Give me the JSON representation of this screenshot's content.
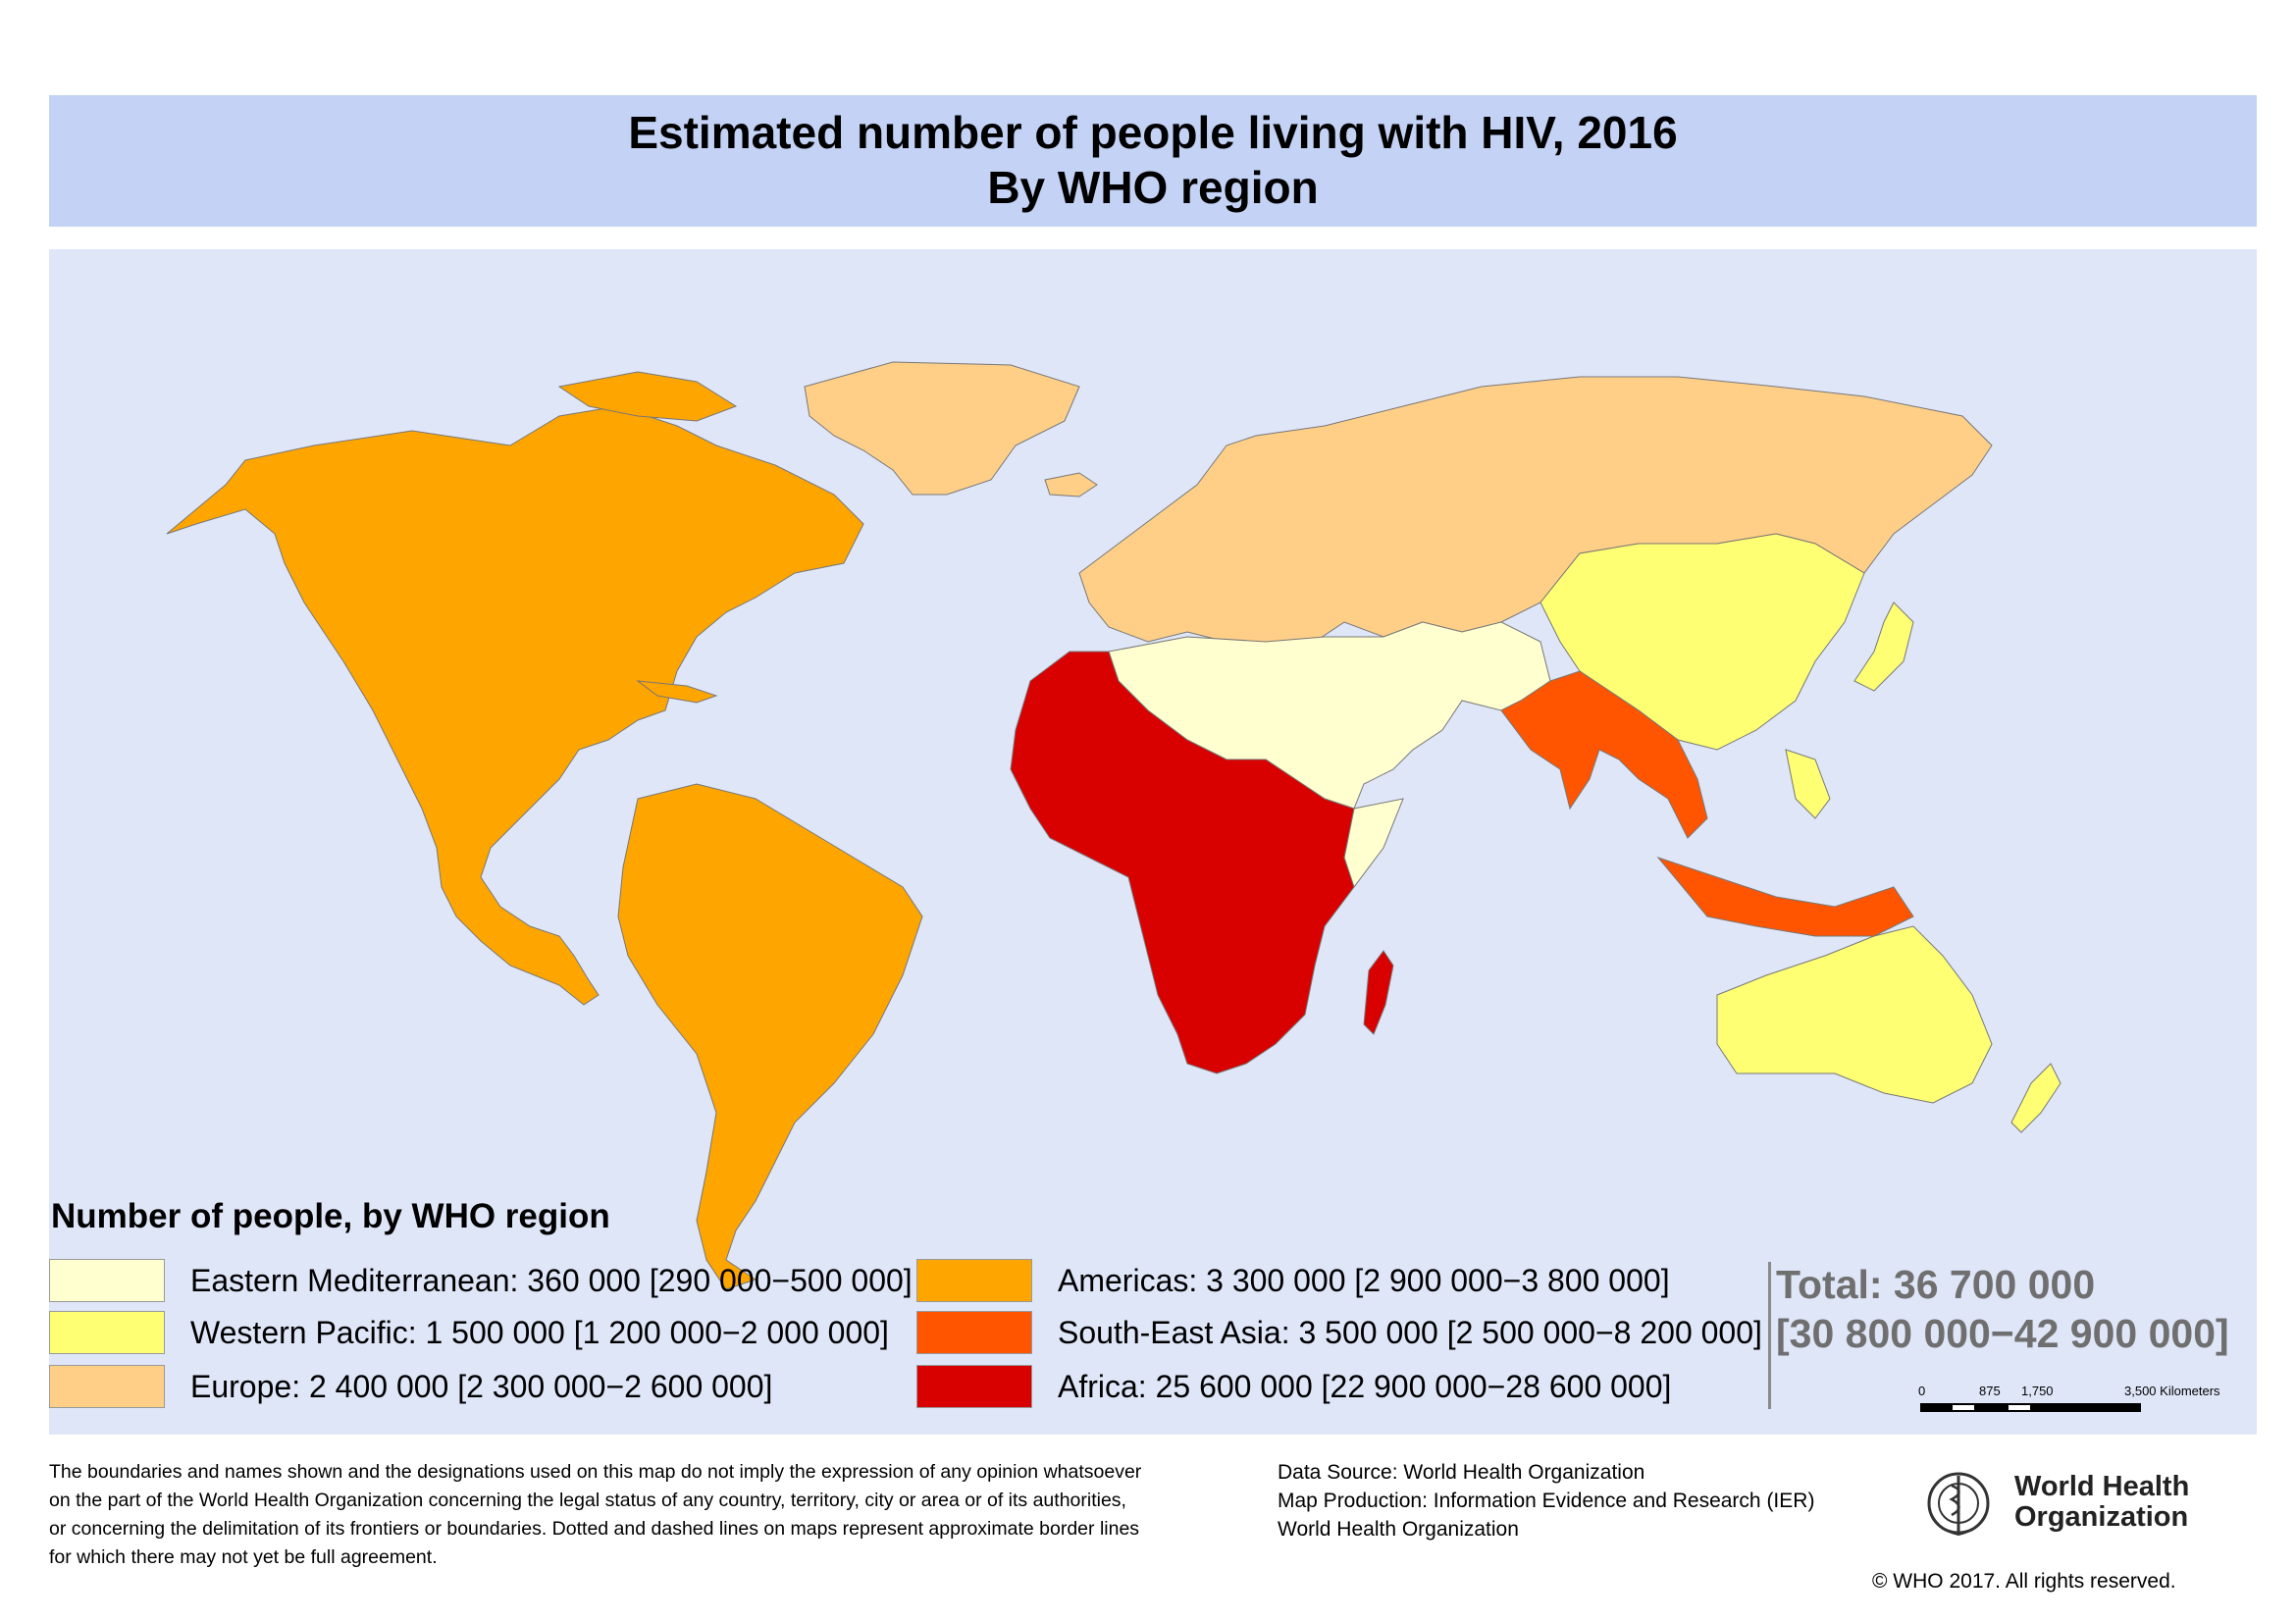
{
  "title": {
    "line1": "Estimated number of people living with HIV, 2016",
    "line2": "By WHO region"
  },
  "colors": {
    "ocean": "#dfe6f8",
    "header_band": "#c3d2f5",
    "eastern_mediterranean": "#ffffcf",
    "western_pacific": "#ffff73",
    "europe": "#ffcf88",
    "americas": "#ffa500",
    "south_east_asia": "#ff5500",
    "africa": "#d90000"
  },
  "legend": {
    "title": "Number of people, by WHO region",
    "items": [
      {
        "label": "Eastern Mediterranean: 360 000 [290 000−500 000]",
        "color": "#ffffcf"
      },
      {
        "label": "Western Pacific: 1 500 000 [1 200 000−2 000 000]",
        "color": "#ffff73"
      },
      {
        "label": "Europe: 2 400 000 [2 300 000−2 600 000]",
        "color": "#ffcf88"
      },
      {
        "label": "Americas: 3 300 000 [2 900 000−3 800 000]",
        "color": "#ffa500"
      },
      {
        "label": "South-East Asia: 3 500 000 [2 500 000−8 200 000]",
        "color": "#ff5500"
      },
      {
        "label": "Africa: 25 600 000 [22 900 000−28 600 000]",
        "color": "#d90000"
      }
    ]
  },
  "total": {
    "line1": "Total: 36 700 000",
    "line2": "[30 800 000−42 900 000]"
  },
  "scale_bar": {
    "ticks": [
      "0",
      "875",
      "1,750",
      "3,500 Kilometers"
    ]
  },
  "disclaimer": [
    "The boundaries and names shown and the designations used on this map do not imply the expression of any opinion whatsoever",
    "on the part of the World Health Organization concerning the legal status of any country, territory, city or area or of its authorities,",
    "or concerning the delimitation of its frontiers or boundaries. Dotted and dashed lines on maps represent approximate border lines",
    "for which there may not yet be full agreement."
  ],
  "credits": [
    "Data Source: World Health Organization",
    "Map Production: Information Evidence and Research (IER)",
    "World Health Organization"
  ],
  "logo": {
    "icon": "who-emblem-icon",
    "line1": "World Health",
    "line2": "Organization"
  },
  "copyright": "© WHO 2017. All rights reserved."
}
